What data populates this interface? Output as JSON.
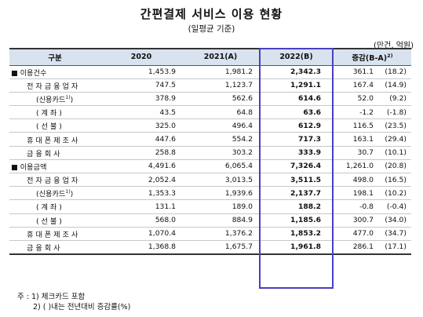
{
  "title": "간편결제 서비스 이용 현황",
  "subtitle": "(일평균 기준)",
  "unit": "(만건, 억원)",
  "headers": [
    "구분",
    "2020",
    "2021(A)",
    "2022(B)",
    "증감(B-A)",
    "2)"
  ],
  "rows": [
    {
      "label": "■ 이용건수",
      "v2020": "1,453.9",
      "v2021": "1,981.2",
      "v2022": "2,342.3",
      "diff": "361.1",
      "rate": "(18.2)"
    },
    {
      "label": "전 자 금 융 업 자",
      "v2020": "747.5",
      "v2021": "1,123.7",
      "v2022": "1,291.1",
      "diff": "167.4",
      "rate": "(14.9)"
    },
    {
      "label": "(신용카드",
      "sup": "1)",
      "close": ")",
      "v2020": "378.9",
      "v2021": "562.6",
      "v2022": "614.6",
      "diff": "52.0",
      "rate": "(9.2)"
    },
    {
      "label": "(  계       좌  )",
      "v2020": "43.5",
      "v2021": "64.8",
      "v2022": "63.6",
      "diff": "-1.2",
      "rate": "(-1.8)"
    },
    {
      "label": "(  선       불  )",
      "v2020": "325.0",
      "v2021": "496.4",
      "v2022": "612.9",
      "diff": "116.5",
      "rate": "(23.5)"
    },
    {
      "label": "휴 대 폰 제 조 사",
      "v2020": "447.6",
      "v2021": "554.2",
      "v2022": "717.3",
      "diff": "163.1",
      "rate": "(29.4)"
    },
    {
      "label": "금   융   회   사",
      "v2020": "258.8",
      "v2021": "303.2",
      "v2022": "333.9",
      "diff": "30.7",
      "rate": "(10.1)"
    },
    {
      "label": "■ 이용금액",
      "v2020": "4,491.6",
      "v2021": "6,065.4",
      "v2022": "7,326.4",
      "diff": "1,261.0",
      "rate": "(20.8)"
    },
    {
      "label": "전 자 금 융 업 자",
      "v2020": "2,052.4",
      "v2021": "3,013.5",
      "v2022": "3,511.5",
      "diff": "498.0",
      "rate": "(16.5)"
    },
    {
      "label": "(신용카드",
      "sup": "1)",
      "close": ")",
      "v2020": "1,353.3",
      "v2021": "1,939.6",
      "v2022": "2,137.7",
      "diff": "198.1",
      "rate": "(10.2)"
    },
    {
      "label": "(  계       좌  )",
      "v2020": "131.1",
      "v2021": "189.0",
      "v2022": "188.2",
      "diff": "-0.8",
      "rate": "(-0.4)"
    },
    {
      "label": "(  선       불  )",
      "v2020": "568.0",
      "v2021": "884.9",
      "v2022": "1,185.6",
      "diff": "300.7",
      "rate": "(34.0)"
    },
    {
      "label": "휴 대 폰 제 조 사",
      "v2020": "1,070.4",
      "v2021": "1,376.2",
      "v2022": "1,853.2",
      "diff": "477.0",
      "rate": "(34.7)"
    },
    {
      "label": "금   융   회   사",
      "v2020": "1,368.8",
      "v2021": "1,675.7",
      "v2022": "1,961.8",
      "diff": "286.1",
      "rate": "(17.1)"
    }
  ],
  "notes": {
    "n1": "주 : 1) 체크카드 포함",
    "n2": "2) (   )내는 전년대비 증감률(%)"
  }
}
